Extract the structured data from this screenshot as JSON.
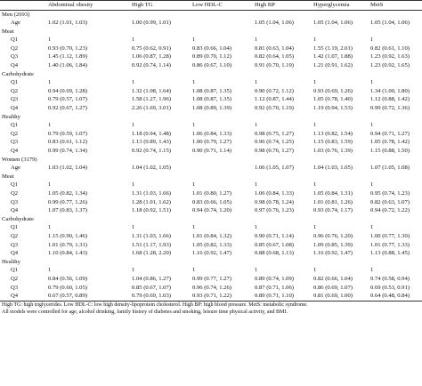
{
  "columns": [
    "",
    "Abdominal obesity",
    "High TG",
    "Low HDL-C",
    "High BP",
    "Hyperglycemia",
    "MetS"
  ],
  "rows": [
    {
      "label": "Men (2693)",
      "kind": "group",
      "values": []
    },
    {
      "label": "Age",
      "kind": "sub",
      "values": [
        "1.02 (1.01, 1.03)",
        "1.00 (0.99, 1.01)",
        "",
        "1.05 (1.04, 1.06)",
        "1.05 (1.04, 1.06)",
        "1.05 (1.04, 1.06)"
      ]
    },
    {
      "label": "Meat",
      "kind": "group",
      "values": []
    },
    {
      "label": "Q1",
      "kind": "sub",
      "values": [
        "1",
        "1",
        "1",
        "1",
        "1",
        "1"
      ]
    },
    {
      "label": "Q2",
      "kind": "sub",
      "values": [
        "0.93 (0.70, 1.23)",
        "0.75 (0.62, 0.91)",
        "0.83 (0.66, 1.04)",
        "0.81 (0.63, 1.04)",
        "1.55 (1.19, 2.01)",
        "0.82 (0.61, 1.10)"
      ]
    },
    {
      "label": "Q3",
      "kind": "sub",
      "values": [
        "1.45 (1.12, 1.89)",
        "1.06 (0.87, 1.28)",
        "0.89 (0.70, 1.12)",
        "0.82 (0.64, 1.05)",
        "1.42 (1.07, 1.88)",
        "1.23 (0.92, 1.63)"
      ]
    },
    {
      "label": "Q4",
      "kind": "sub",
      "values": [
        "1.40 (1.06, 1.84)",
        "0.92 (0.74, 1.14)",
        "0.86 (0.67, 1.10)",
        "0.91 (0.70, 1.19)",
        "1.21 (0.91, 1.62)",
        "1.23 (0.92, 1.65)"
      ]
    },
    {
      "label": "Carbohydrate",
      "kind": "group",
      "values": []
    },
    {
      "label": "Q1",
      "kind": "sub",
      "values": [
        "1",
        "1",
        "1",
        "1",
        "1",
        "1"
      ]
    },
    {
      "label": "Q2",
      "kind": "sub",
      "values": [
        "0.94 (0.69, 1.28)",
        "1.32 (1.08, 1.64)",
        "1.08 (0.87, 1.35)",
        "0.90 (0.72, 1.12)",
        "0.93 (0.69, 1.26)",
        "1.34 (1.00, 1.80)"
      ]
    },
    {
      "label": "Q3",
      "kind": "sub",
      "values": [
        "0.79 (0.57, 1.07)",
        "1.58 (1.27, 1.96)",
        "1.08 (0.87, 1.35)",
        "1.12 (0.87, 1.44)",
        "1.05 (0.78, 1.40)",
        "1.12 (0.88, 1.42)"
      ]
    },
    {
      "label": "Q4",
      "kind": "sub",
      "values": [
        "0.92 (0.67, 1.27)",
        "2.26 (1.69, 3.01)",
        "1.08 (0.89, 1.39)",
        "0.92 (0.70, 1.19)",
        "1.19 (0.94, 1.53)",
        "0.99 (0.72, 1.36)"
      ]
    },
    {
      "label": "Healthy",
      "kind": "group",
      "values": []
    },
    {
      "label": "Q1",
      "kind": "sub",
      "values": [
        "1",
        "1",
        "1",
        "1",
        "1",
        "1"
      ]
    },
    {
      "label": "Q2",
      "kind": "sub",
      "values": [
        "0.79 (0.59, 1.07)",
        "1.18 (0.94, 1.48)",
        "1.06 (0.84, 1.33)",
        "0.98 (0.75, 1.27)",
        "1.13 (0.82, 1.54)",
        "0.94 (0.71, 1.27)"
      ]
    },
    {
      "label": "Q3",
      "kind": "sub",
      "values": [
        "0.83 (0.61, 1.12)",
        "1.13 (0.89, 1.43)",
        "1.00 (0.79, 1.27)",
        "0.96 (0.74, 1.25)",
        "1.15 (0.83, 1.59)",
        "1.05 (0.78, 1.42)"
      ]
    },
    {
      "label": "Q4",
      "kind": "sub",
      "values": [
        "0.99 (0.74, 1.34)",
        "0.92 (0.74, 1.15)",
        "0.90 (0.71, 1.14)",
        "0.98 (0.76, 1.27)",
        "1.03 (0.76, 1.39)",
        "1.15 (0.88, 1.50)"
      ]
    },
    {
      "label": "Women (3179)",
      "kind": "group",
      "values": []
    },
    {
      "label": "Age",
      "kind": "sub",
      "values": [
        "1.03 (1.02, 1.04)",
        "1.04 (1.02, 1.05)",
        "",
        "1.06 (1.05, 1.07)",
        "1.04 (1.03, 1.05)",
        "1.07 (1.05, 1.08)"
      ]
    },
    {
      "label": "Meat",
      "kind": "group",
      "values": []
    },
    {
      "label": "Q1",
      "kind": "sub",
      "values": [
        "1",
        "1",
        "1",
        "1",
        "1",
        "1"
      ]
    },
    {
      "label": "Q2",
      "kind": "sub",
      "values": [
        "1.05 (0.82, 1.34)",
        "1.31 (1.03, 1.66)",
        "1.01 (0.80, 1.27)",
        "1.06 (0.84, 1.33)",
        "1.05 (0.84, 1.31)",
        "0.95 (0.74, 1.23)"
      ]
    },
    {
      "label": "Q3",
      "kind": "sub",
      "values": [
        "0.99 (0.77, 1.26)",
        "1.28 (1.01, 1.62)",
        "0.83 (0.66, 1.05)",
        "0.98 (0.78, 1.24)",
        "1.01 (0.81, 1.26)",
        "0.82 (0.63, 1.07)"
      ]
    },
    {
      "label": "Q4",
      "kind": "sub",
      "values": [
        "1.07 (0.83, 1.37)",
        "1.18 (0.92, 1.51)",
        "0.94 (0.74, 1.20)",
        "0.97 (0.76, 1.23)",
        "0.93 (0.74, 1.17)",
        "0.94 (0.72, 1.22)"
      ]
    },
    {
      "label": "Carbohydrate",
      "kind": "group",
      "values": []
    },
    {
      "label": "Q1",
      "kind": "sub",
      "values": [
        "1",
        "1",
        "1",
        "1",
        "1",
        "1"
      ]
    },
    {
      "label": "Q2",
      "kind": "sub",
      "values": [
        "1.15 (0.90, 1.46)",
        "1.31 (1.03, 1.66)",
        "1.01 (0.84, 1.32)",
        "0.90 (0.71, 1.14)",
        "0.96 (0.76, 1.20)",
        "1.00 (0.77, 1.30)"
      ]
    },
    {
      "label": "Q3",
      "kind": "sub",
      "values": [
        "1.01 (0.79, 1.31)",
        "1.51 (1.17, 1.93)",
        "1.05 (0.82, 1.33)",
        "0.85 (0.67, 1.08)",
        "1.09 (0.85, 1.39)",
        "1.01 (0.77, 1.33)"
      ]
    },
    {
      "label": "Q4",
      "kind": "sub",
      "values": [
        "1.10 (0.84, 1.43)",
        "1.68 (1.28, 2.20)",
        "1.16 (0.92, 1.47)",
        "0.88 (0.68, 1.13)",
        "1.16 (0.92, 1.47)",
        "1.13 (0.88, 1.45)"
      ]
    },
    {
      "label": "Healthy",
      "kind": "group",
      "values": []
    },
    {
      "label": "Q1",
      "kind": "sub",
      "values": [
        "1",
        "1",
        "1",
        "1",
        "1",
        "1"
      ]
    },
    {
      "label": "Q2",
      "kind": "sub",
      "values": [
        "0.84 (0.56, 1.09)",
        "1.04 (0.86, 1.27)",
        "0.99 (0.77, 1.27)",
        "0.89 (0.74, 1.09)",
        "0.82 (0.66, 1.04)",
        "0.74 (0.58, 0.94)"
      ]
    },
    {
      "label": "Q3",
      "kind": "sub",
      "values": [
        "0.79 (0.60, 1.05)",
        "0.85 (0.67, 1.07)",
        "0.96 (0.74, 1.26)",
        "0.87 (0.71, 1.06)",
        "0.86 (0.69, 1.07)",
        "0.69 (0.53, 0.91)"
      ]
    },
    {
      "label": "Q4",
      "kind": "sub",
      "values": [
        "0.67 (0.57, 0.89)",
        "0.79 (0.69, 1.03)",
        "0.93 (0.71, 1.22)",
        "0.89 (0.71, 1.10)",
        "0.81 (0.69, 1.00)",
        "0.64 (0.48, 0.84)"
      ]
    }
  ],
  "footnotes": [
    "High TG: high triglycerides. Low HDL-C: low high density-lipoprotein cholesterol. High BP: high blood pressure. MetS: metabolic syndrome.",
    "All models were controlled for age, alcohol drinking, family history of diabetes and smoking, leisure time physical activity, and BMI."
  ]
}
